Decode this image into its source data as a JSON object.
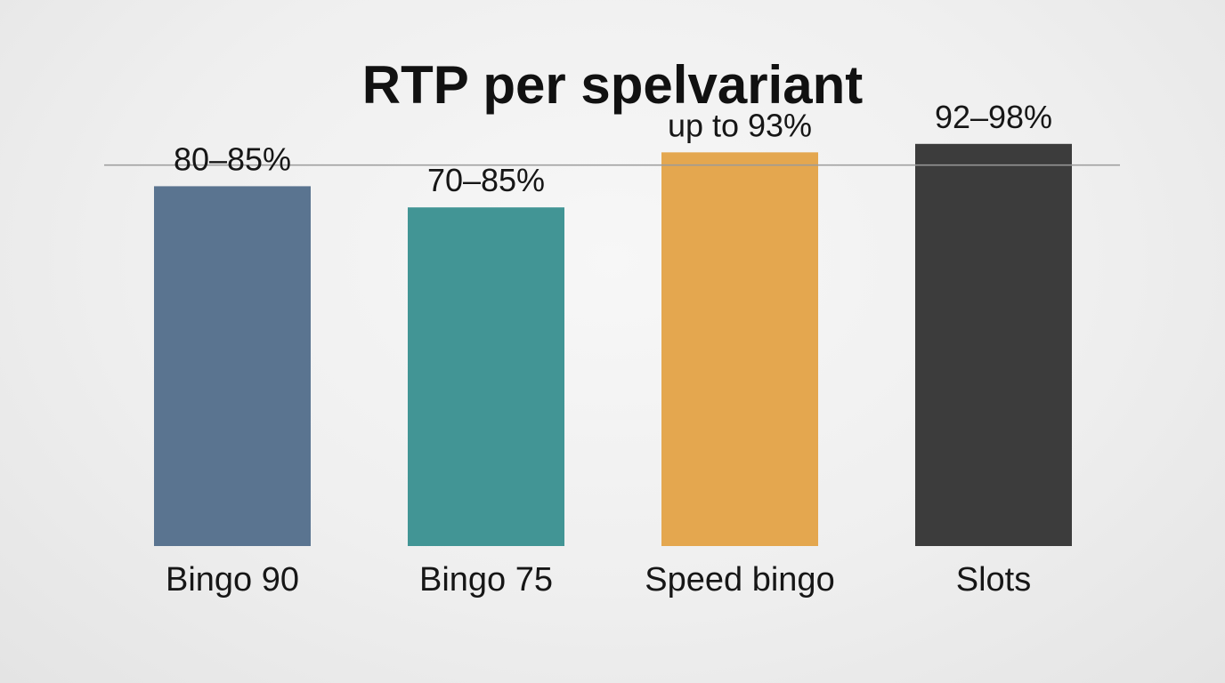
{
  "chart_data": {
    "type": "bar",
    "title": "RTP per spelvariant",
    "xlabel": "",
    "ylabel": "",
    "categories": [
      "Bingo 90",
      "Bingo 75",
      "Speed bingo",
      "Slots"
    ],
    "values": [
      85,
      80,
      93,
      95
    ],
    "data_labels": [
      "80–85%",
      "70–85%",
      "up to 93%",
      "92–98%"
    ],
    "colors": [
      "#5a7490",
      "#429595",
      "#e4a74f",
      "#3c3c3c"
    ],
    "reference_line": {
      "value": 90,
      "color": "#9a9a9a"
    },
    "ylim": [
      0,
      100
    ],
    "y_axis_visible": false,
    "grid": false,
    "legend": "none"
  }
}
